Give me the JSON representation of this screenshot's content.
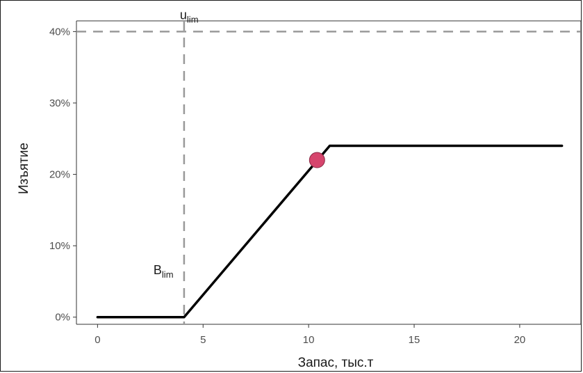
{
  "chart_data": {
    "type": "line",
    "xlabel": "Запас, тыс.т",
    "ylabel": "Изъятие",
    "xlim": [
      -1,
      22.9
    ],
    "ylim": [
      -1,
      41.5
    ],
    "x_ticks": [
      0,
      5,
      10,
      15,
      20
    ],
    "x_tick_labels": [
      "0",
      "5",
      "10",
      "15",
      "20"
    ],
    "y_ticks": [
      0,
      10,
      20,
      30,
      40
    ],
    "y_tick_labels": [
      "0%",
      "10%",
      "20%",
      "30%",
      "40%"
    ],
    "grid": false,
    "series": [
      {
        "x": [
          0,
          4.1,
          11,
          22
        ],
        "y": [
          0,
          0,
          24,
          24
        ],
        "color": "#000000"
      }
    ],
    "point": {
      "x": 10.4,
      "y": 22,
      "color": "#d6456d"
    },
    "reference_lines": {
      "vertical": {
        "x": 4.1,
        "label_main": "B",
        "label_sub": "lim",
        "color": "#999999"
      },
      "horizontal": {
        "y": 40,
        "label_main": "u",
        "label_sub": "lim",
        "color": "#999999"
      }
    }
  }
}
